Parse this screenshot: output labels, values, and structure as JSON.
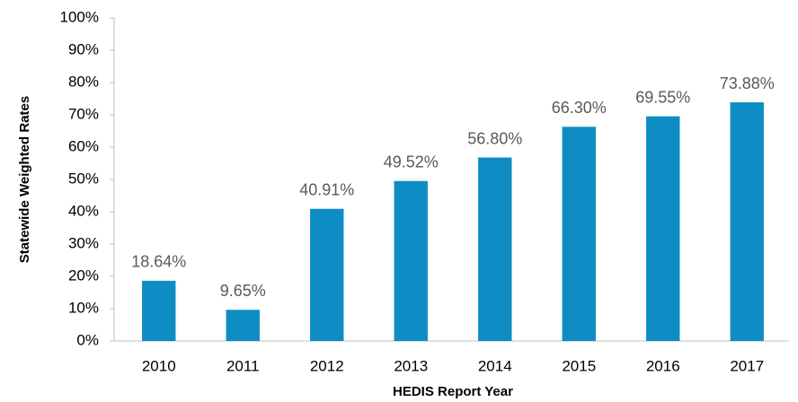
{
  "chart_data": {
    "type": "bar",
    "x_label": "HEDIS Report Year",
    "y_label": "Statewide Weighted Rates",
    "categories": [
      "2010",
      "2011",
      "2012",
      "2013",
      "2014",
      "2015",
      "2016",
      "2017"
    ],
    "values": [
      18.64,
      9.65,
      40.91,
      49.52,
      56.8,
      66.3,
      69.55,
      73.88
    ],
    "value_labels": [
      "18.64%",
      "9.65%",
      "40.91%",
      "49.52%",
      "56.80%",
      "66.30%",
      "69.55%",
      "73.88%"
    ],
    "color": "#0e8dc4",
    "ylim": [
      0,
      100
    ],
    "yticks": [
      {
        "value": 0,
        "label": "0%"
      },
      {
        "value": 10,
        "label": "10%"
      },
      {
        "value": 20,
        "label": "20%"
      },
      {
        "value": 30,
        "label": "30%"
      },
      {
        "value": 40,
        "label": "40%"
      },
      {
        "value": 50,
        "label": "50%"
      },
      {
        "value": 60,
        "label": "60%"
      },
      {
        "value": 70,
        "label": "70%"
      },
      {
        "value": 80,
        "label": "80%"
      },
      {
        "value": 90,
        "label": "90%"
      },
      {
        "value": 100,
        "label": "100%"
      }
    ],
    "grid": false
  }
}
